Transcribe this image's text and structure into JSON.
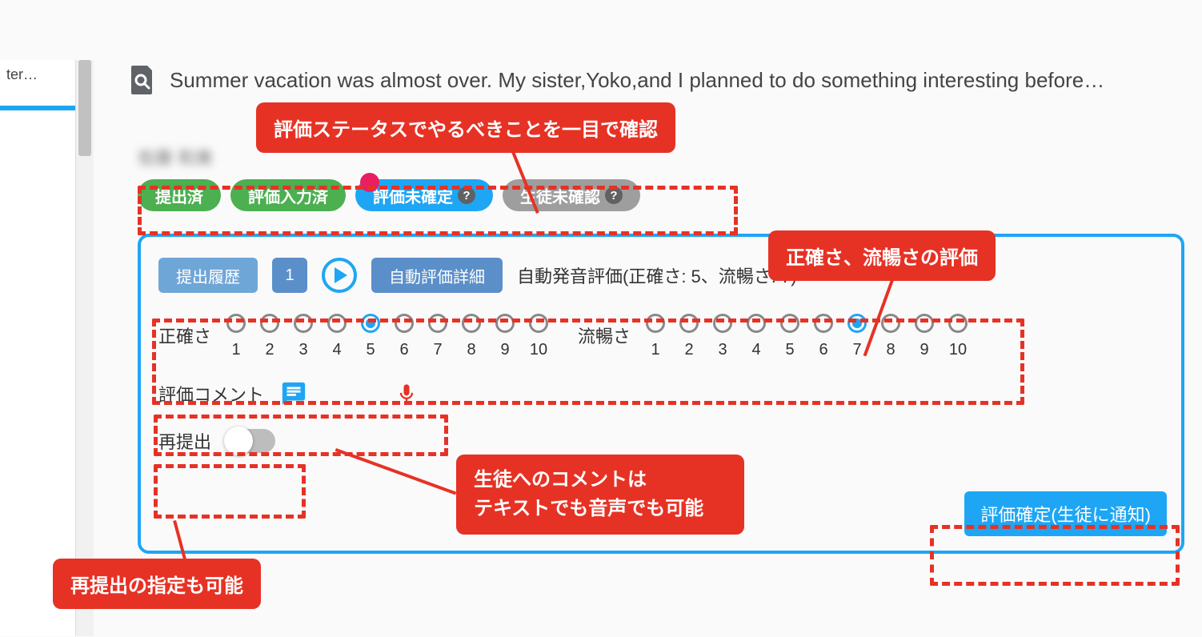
{
  "colors": {
    "accent_blue": "#1ea6f4",
    "pill_green": "#4caf50",
    "pill_gray": "#9e9e9e",
    "annotation_red": "#e63225",
    "notify_pink": "#e91e63",
    "button_blue": "#5b8fc9",
    "button_blue_light": "#6fa6d8",
    "text_gray": "#444"
  },
  "sidebar": {
    "truncated_text": "ter…"
  },
  "prompt": {
    "text": "Summer vacation was almost over. My sister,Yoko,and I planned to do something interesting before…"
  },
  "student": {
    "name_blurred": "佐藤 和美"
  },
  "status": {
    "submitted": "提出済",
    "evaluated": "評価入力済",
    "pending": "評価未確定",
    "pending_help": "?",
    "student_unseen": "生徒未確認",
    "student_unseen_help": "?"
  },
  "panel": {
    "history_btn": "提出履歴",
    "history_num": "1",
    "auto_detail_btn": "自動評価詳細",
    "auto_score_text": "自動発音評価(正確さ: 5、流暢さ: 7)",
    "accuracy": {
      "label": "正確さ",
      "options": [
        "1",
        "2",
        "3",
        "4",
        "5",
        "6",
        "7",
        "8",
        "9",
        "10"
      ],
      "selected_index": 4
    },
    "fluency": {
      "label": "流暢さ",
      "options": [
        "1",
        "2",
        "3",
        "4",
        "5",
        "6",
        "7",
        "8",
        "9",
        "10"
      ],
      "selected_index": 6
    },
    "comment_label": "評価コメント",
    "resubmit_label": "再提出",
    "resubmit_on": false,
    "confirm_btn": "評価確定(生徒に通知)"
  },
  "annotations": {
    "status_callout": "評価ステータスでやるべきことを一目で確認",
    "rating_callout": "正確さ、流暢さの評価",
    "comment_callout_l1": "生徒へのコメントは",
    "comment_callout_l2": "テキストでも音声でも可能",
    "resubmit_callout": "再提出の指定も可能"
  }
}
